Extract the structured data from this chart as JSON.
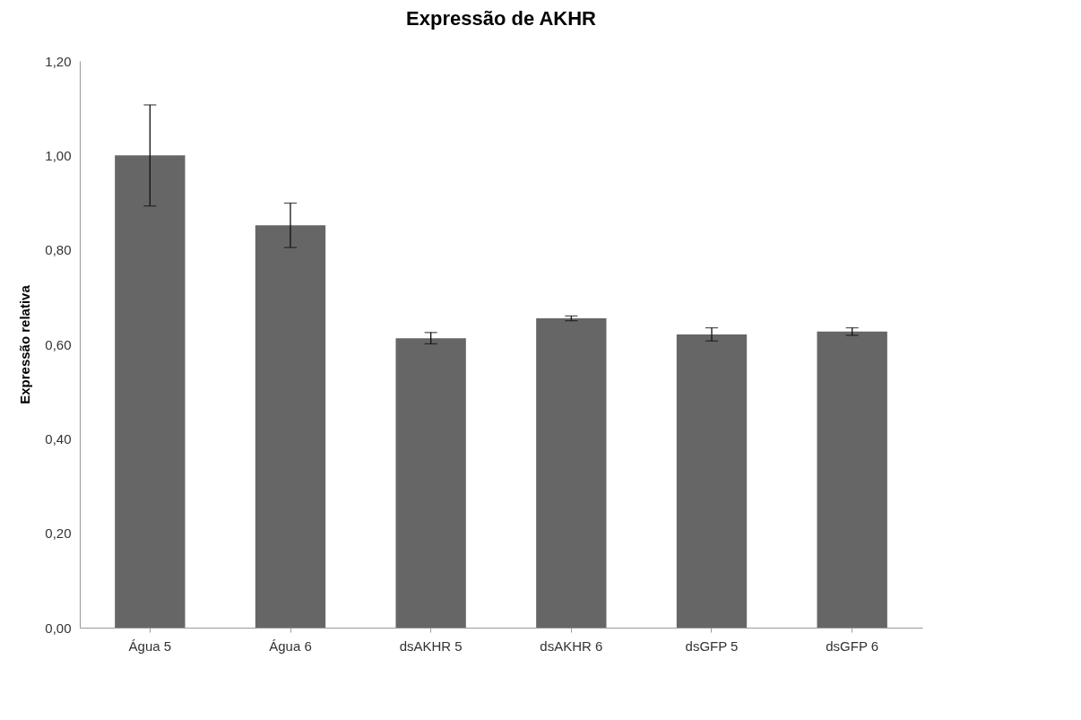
{
  "chart_data": {
    "type": "bar",
    "title": "Expressão de AKHR",
    "ylabel": "Expressão relativa",
    "categories": [
      "Água 5",
      "Água 6",
      "dsAKHR 5",
      "dsAKHR 6",
      "dsGFP 5",
      "dsGFP 6"
    ],
    "values": [
      1.0,
      0.852,
      0.613,
      0.655,
      0.621,
      0.627
    ],
    "errors": [
      0.107,
      0.047,
      0.012,
      0.005,
      0.014,
      0.008
    ],
    "color": "#666666",
    "ylim": [
      0,
      1.2
    ],
    "yticks": [
      {
        "value": 0,
        "label": "0,00"
      },
      {
        "value": 0.2,
        "label": "0,20"
      },
      {
        "value": 0.4,
        "label": "0,40"
      },
      {
        "value": 0.6,
        "label": "0,60"
      },
      {
        "value": 0.8,
        "label": "0,80"
      },
      {
        "value": 1.0,
        "label": "1,00"
      },
      {
        "value": 1.2,
        "label": "1,20"
      }
    ],
    "grid": false
  }
}
